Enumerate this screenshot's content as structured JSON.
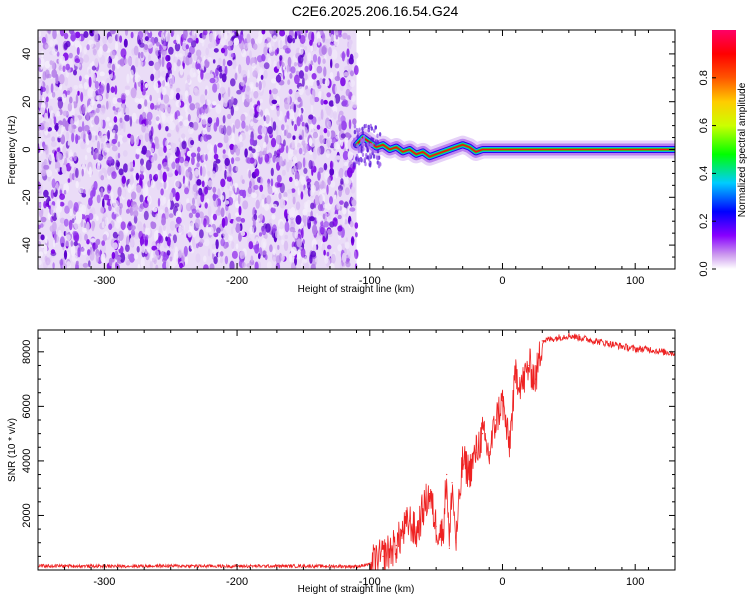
{
  "title": "C2E6.2025.206.16.54.G24",
  "chart_data": [
    {
      "type": "heatmap",
      "xlabel": "Height of straight line (km)",
      "ylabel": "Frequency (Hz)",
      "xlim": [
        -350,
        130
      ],
      "ylim": [
        -50,
        50
      ],
      "xticks": [
        -300,
        -200,
        -100,
        0,
        100
      ],
      "yticks": [
        -40,
        -20,
        0,
        20,
        40
      ],
      "noise_region_x": [
        -350,
        -110
      ],
      "tone_track": {
        "x": [
          -110,
          -105,
          -100,
          -95,
          -90,
          -85,
          -80,
          -75,
          -70,
          -65,
          -60,
          -55,
          -50,
          -45,
          -40,
          -35,
          -30,
          -25,
          -20,
          -15,
          -10,
          -5,
          0,
          50,
          100,
          130
        ],
        "y": [
          2,
          5,
          3,
          1,
          2,
          0,
          1,
          -1,
          0,
          -2,
          -1,
          -3,
          -2,
          -1,
          0,
          1,
          2,
          1,
          -1,
          0,
          0,
          0,
          0,
          0,
          0,
          0
        ]
      },
      "colorbar": {
        "label": "Normalized spectral amplitude",
        "range": [
          0,
          1
        ],
        "ticks": [
          0.0,
          0.2,
          0.4,
          0.6,
          0.8
        ],
        "tick_labels": [
          "0.0",
          "0.2",
          "0.4",
          "0.6",
          "0.8"
        ],
        "colors": [
          "#ffffff",
          "#cc99ee",
          "#8800ff",
          "#0000ff",
          "#00ccff",
          "#00ff00",
          "#ccff00",
          "#ffcc00",
          "#ff5500",
          "#ff0000",
          "#ff0066"
        ]
      },
      "grid": false
    },
    {
      "type": "line",
      "xlabel": "Height of straight line (km)",
      "ylabel": "SNR (10 * v/v)",
      "xlim": [
        -350,
        130
      ],
      "ylim": [
        0,
        8800
      ],
      "xticks": [
        -300,
        -200,
        -100,
        0,
        100
      ],
      "yticks": [
        2000,
        4000,
        6000,
        8000
      ],
      "series": [
        {
          "color": "#ee2222",
          "x": [
            -350,
            -300,
            -250,
            -200,
            -150,
            -110,
            -100,
            -90,
            -80,
            -75,
            -70,
            -65,
            -60,
            -55,
            -50,
            -45,
            -42,
            -40,
            -38,
            -35,
            -30,
            -25,
            -20,
            -15,
            -10,
            -5,
            0,
            5,
            10,
            15,
            20,
            25,
            30,
            40,
            50,
            60,
            70,
            80,
            90,
            100,
            110,
            120,
            130
          ],
          "values": [
            150,
            140,
            150,
            140,
            145,
            130,
            200,
            500,
            900,
            1400,
            1800,
            1300,
            2200,
            2800,
            1600,
            1300,
            3500,
            800,
            3200,
            1000,
            4000,
            3600,
            4300,
            5000,
            4200,
            5500,
            6200,
            4500,
            7200,
            6800,
            7500,
            7000,
            8400,
            8500,
            8600,
            8500,
            8400,
            8300,
            8200,
            8100,
            8100,
            8000,
            7950
          ]
        }
      ],
      "grid": false
    }
  ]
}
